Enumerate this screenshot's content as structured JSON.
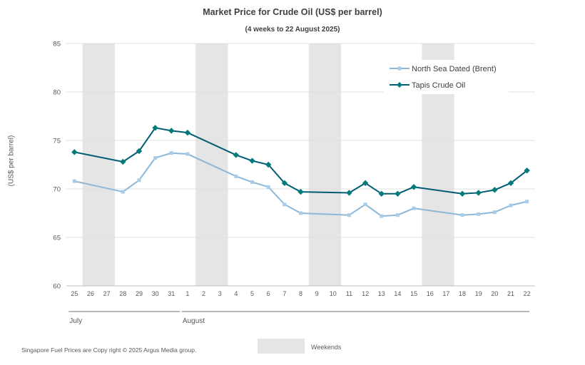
{
  "chart_data": {
    "type": "line",
    "title": "Market Price for Crude  Oil (US$ per barrel)",
    "subtitle": "(4 weeks to 22 August 2025)",
    "ylabel": "(US$ per barrel)",
    "ylim": [
      60,
      85
    ],
    "yticks": [
      60,
      65,
      70,
      75,
      80,
      85
    ],
    "grid": true,
    "legend_position": "top-right",
    "categories": [
      "25",
      "26",
      "27",
      "28",
      "29",
      "30",
      "31",
      "1",
      "2",
      "3",
      "4",
      "5",
      "6",
      "7",
      "8",
      "9",
      "10",
      "11",
      "12",
      "13",
      "14",
      "15",
      "16",
      "17",
      "18",
      "19",
      "20",
      "21",
      "22"
    ],
    "weekend_pairs": [
      [
        "26",
        "27"
      ],
      [
        "2",
        "3"
      ],
      [
        "9",
        "10"
      ],
      [
        "16",
        "17"
      ]
    ],
    "months": [
      {
        "label": "July",
        "from": "25",
        "to": "31"
      },
      {
        "label": "August",
        "from": "1",
        "to": "22"
      }
    ],
    "series": [
      {
        "name": "North Sea Dated (Brent)",
        "color": "#8db8d8",
        "marker": "square",
        "values": [
          70.8,
          null,
          null,
          69.7,
          70.9,
          73.2,
          73.7,
          73.6,
          null,
          null,
          71.3,
          70.7,
          70.2,
          68.4,
          67.5,
          null,
          null,
          67.3,
          68.4,
          67.2,
          67.3,
          68.0,
          null,
          null,
          67.3,
          67.4,
          67.6,
          68.3,
          68.7
        ]
      },
      {
        "name": "Tapis Crude Oil",
        "color": "#005c73",
        "marker": "diamond",
        "values": [
          73.8,
          null,
          null,
          72.8,
          73.9,
          76.3,
          76.0,
          75.8,
          null,
          null,
          73.5,
          72.9,
          72.5,
          70.6,
          69.7,
          null,
          null,
          69.6,
          70.6,
          69.5,
          69.5,
          70.2,
          null,
          null,
          69.5,
          69.6,
          69.9,
          70.6,
          71.9
        ]
      }
    ],
    "weekend_legend": "Weekends",
    "footer": "Singapore  Fuel Prices are  Copy right © 2025 Argus Media  group."
  }
}
